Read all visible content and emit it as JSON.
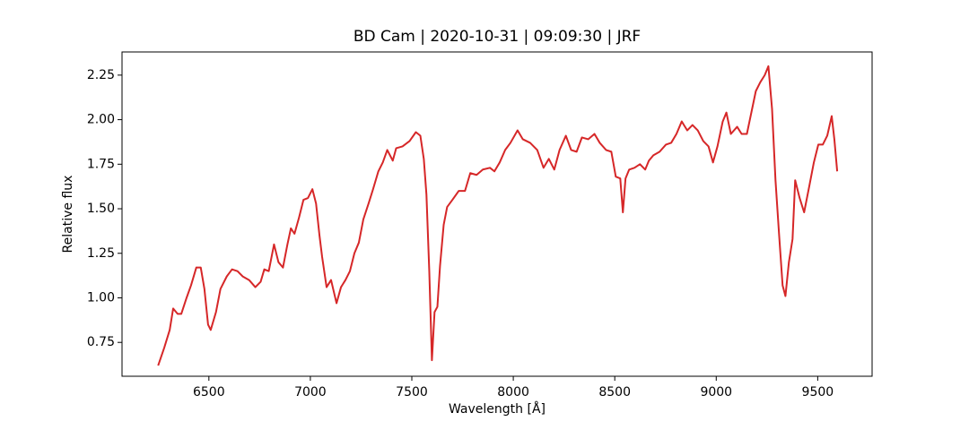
{
  "chart_data": {
    "type": "line",
    "title": "BD Cam | 2020-10-31 | 09:09:30 | JRF",
    "x_label": "Wavelength [Å]",
    "y_label": "Relative flux",
    "color": "#d62728",
    "xlim": [
      6072,
      9768
    ],
    "ylim": [
      0.56,
      2.38
    ],
    "xticks": [
      6500,
      7000,
      7500,
      8000,
      8500,
      9000,
      9500
    ],
    "yticks": [
      0.75,
      {
        "value": 1,
        "label": "1.00"
      },
      1.25,
      {
        "value": 1.5,
        "label": "1.50"
      },
      1.75,
      {
        "value": 2,
        "label": "2.00"
      },
      2.25
    ],
    "grid": false,
    "x": [
      6250,
      6280,
      6307,
      6324,
      6346,
      6364,
      6390,
      6412,
      6438,
      6460,
      6478,
      6496,
      6509,
      6535,
      6557,
      6588,
      6614,
      6641,
      6667,
      6698,
      6729,
      6755,
      6773,
      6795,
      6821,
      6843,
      6865,
      6887,
      6904,
      6922,
      6944,
      6966,
      6988,
      7010,
      7028,
      7045,
      7058,
      7080,
      7102,
      7129,
      7151,
      7173,
      7195,
      7217,
      7239,
      7261,
      7287,
      7309,
      7335,
      7357,
      7379,
      7406,
      7423,
      7454,
      7489,
      7520,
      7542,
      7559,
      7572,
      7586,
      7599,
      7612,
      7626,
      7639,
      7657,
      7674,
      7700,
      7731,
      7762,
      7788,
      7819,
      7850,
      7885,
      7907,
      7933,
      7960,
      7986,
      8021,
      8047,
      8083,
      8118,
      8149,
      8175,
      8202,
      8228,
      8259,
      8285,
      8312,
      8338,
      8369,
      8400,
      8426,
      8457,
      8483,
      8505,
      8527,
      8540,
      8553,
      8571,
      8597,
      8624,
      8650,
      8668,
      8690,
      8721,
      8752,
      8778,
      8804,
      8830,
      8857,
      8883,
      8909,
      8936,
      8962,
      8984,
      9006,
      9032,
      9050,
      9072,
      9103,
      9125,
      9151,
      9173,
      9195,
      9217,
      9239,
      9257,
      9275,
      9292,
      9310,
      9327,
      9341,
      9358,
      9376,
      9389,
      9411,
      9433,
      9459,
      9481,
      9503,
      9525,
      9547,
      9569,
      9582,
      9596
    ],
    "values": [
      0.62,
      0.72,
      0.82,
      0.94,
      0.91,
      0.91,
      1.0,
      1.07,
      1.17,
      1.17,
      1.05,
      0.85,
      0.82,
      0.92,
      1.05,
      1.12,
      1.16,
      1.15,
      1.12,
      1.1,
      1.06,
      1.09,
      1.16,
      1.15,
      1.3,
      1.2,
      1.17,
      1.3,
      1.39,
      1.36,
      1.45,
      1.55,
      1.56,
      1.61,
      1.53,
      1.35,
      1.23,
      1.06,
      1.1,
      0.97,
      1.06,
      1.1,
      1.15,
      1.25,
      1.31,
      1.44,
      1.53,
      1.61,
      1.71,
      1.76,
      1.83,
      1.77,
      1.84,
      1.85,
      1.88,
      1.93,
      1.91,
      1.78,
      1.58,
      1.15,
      0.65,
      0.92,
      0.95,
      1.18,
      1.41,
      1.51,
      1.55,
      1.6,
      1.6,
      1.7,
      1.69,
      1.72,
      1.73,
      1.71,
      1.76,
      1.83,
      1.87,
      1.94,
      1.89,
      1.87,
      1.83,
      1.73,
      1.78,
      1.72,
      1.83,
      1.91,
      1.83,
      1.82,
      1.9,
      1.89,
      1.92,
      1.87,
      1.83,
      1.82,
      1.68,
      1.67,
      1.48,
      1.67,
      1.72,
      1.73,
      1.75,
      1.72,
      1.77,
      1.8,
      1.82,
      1.86,
      1.87,
      1.92,
      1.99,
      1.94,
      1.97,
      1.94,
      1.88,
      1.85,
      1.76,
      1.85,
      1.99,
      2.04,
      1.92,
      1.96,
      1.92,
      1.92,
      2.04,
      2.16,
      2.21,
      2.25,
      2.3,
      2.06,
      1.66,
      1.35,
      1.07,
      1.01,
      1.2,
      1.33,
      1.66,
      1.56,
      1.48,
      1.63,
      1.76,
      1.86,
      1.86,
      1.91,
      2.02,
      1.89,
      1.71
    ]
  }
}
